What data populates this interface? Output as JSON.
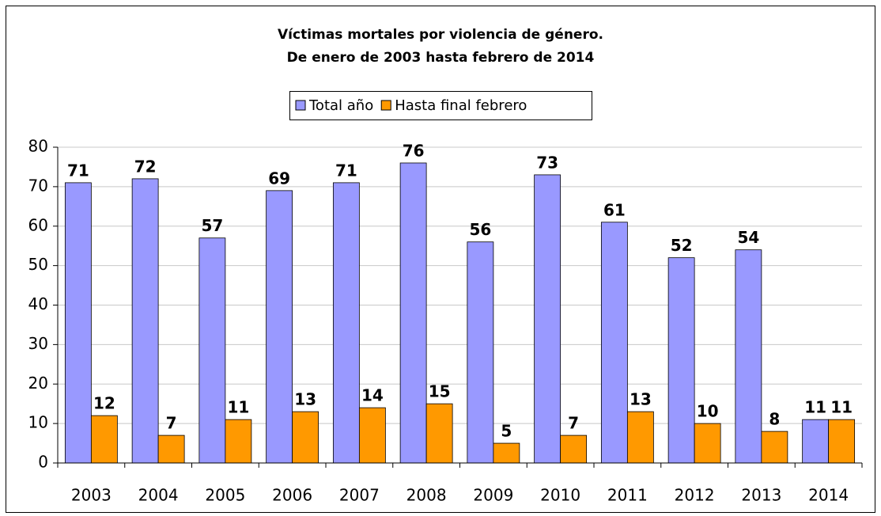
{
  "chart_data": {
    "type": "bar",
    "title": "Víctimas mortales por violencia de género.",
    "subtitle": "De enero de 2003 hasta febrero de 2014",
    "categories": [
      "2003",
      "2004",
      "2005",
      "2006",
      "2007",
      "2008",
      "2009",
      "2010",
      "2011",
      "2012",
      "2013",
      "2014"
    ],
    "series": [
      {
        "name": "Total año",
        "color": "#9999ff",
        "values": [
          71,
          72,
          57,
          69,
          71,
          76,
          56,
          73,
          61,
          52,
          54,
          11
        ]
      },
      {
        "name": "Hasta final febrero",
        "color": "#ff9900",
        "values": [
          12,
          7,
          11,
          13,
          14,
          15,
          5,
          7,
          13,
          10,
          8,
          11
        ]
      }
    ],
    "ylim": [
      0,
      80
    ],
    "yticks": [
      0,
      10,
      20,
      30,
      40,
      50,
      60,
      70,
      80
    ],
    "grid": true,
    "legend": "top"
  }
}
